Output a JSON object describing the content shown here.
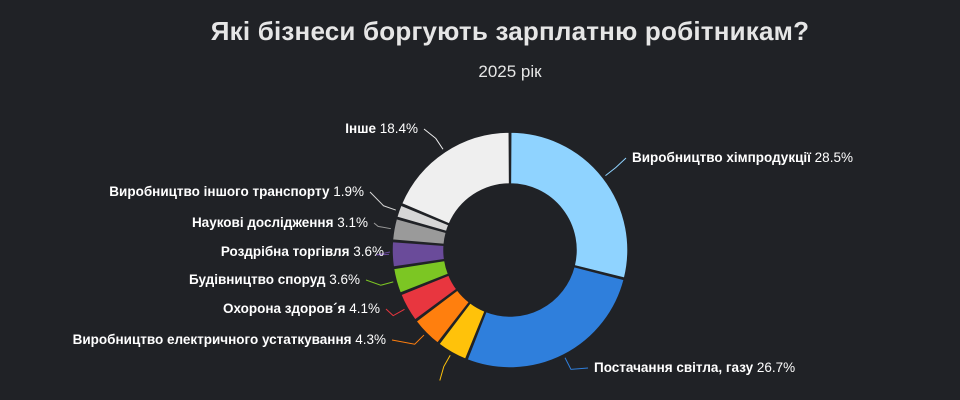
{
  "title": "Які бізнеси боргують зарплатню робітникам?",
  "subtitle": "2025 рік",
  "chart_data": {
    "type": "pie",
    "title": "Які бізнеси боргують зарплатню робітникам?",
    "subtitle": "2025 рік",
    "unit": "%",
    "slices": [
      {
        "label": "Виробництво хімпродукції",
        "value": 28.5,
        "display": "28.5%",
        "color": "#8fd3ff"
      },
      {
        "label": "Постачання світла, газу",
        "value": 26.7,
        "display": "26.7%",
        "color": "#2f7fdc"
      },
      {
        "label": "",
        "value": 4.3,
        "display": "",
        "color": "#ffc20a"
      },
      {
        "label": "Виробництво електричного устаткування",
        "value": 4.3,
        "display": "4.3%",
        "color": "#ff7f0e"
      },
      {
        "label": "Охорона здоров´я",
        "value": 4.1,
        "display": "4.1%",
        "color": "#e8363f"
      },
      {
        "label": "Будівництво споруд",
        "value": 3.6,
        "display": "3.6%",
        "color": "#7cc623"
      },
      {
        "label": "Роздрібна торгівля",
        "value": 3.6,
        "display": "3.6%",
        "color": "#6a4b9a"
      },
      {
        "label": "Наукові дослідження",
        "value": 3.1,
        "display": "3.1%",
        "color": "#9a9a9a"
      },
      {
        "label": "Виробництво іншого транспорту",
        "value": 1.9,
        "display": "1.9%",
        "color": "#d6d6d6"
      },
      {
        "label": "Інше",
        "value": 18.4,
        "display": "18.4%",
        "color": "#efefef"
      }
    ]
  }
}
